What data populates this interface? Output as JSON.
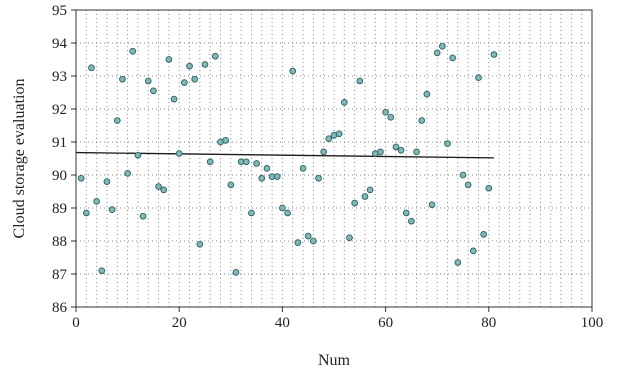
{
  "chart_data": {
    "type": "scatter",
    "title": "",
    "xlabel": "Num",
    "ylabel": "Cloud storage evaluation",
    "xlim": [
      0,
      100
    ],
    "ylim": [
      86,
      95
    ],
    "xticks": [
      0,
      20,
      40,
      60,
      80,
      100
    ],
    "yticks": [
      86,
      87,
      88,
      89,
      90,
      91,
      92,
      93,
      94,
      95
    ],
    "grid": "dotted",
    "colors": {
      "point_fill": "#7fb8b6",
      "point_stroke": "#2f5f63",
      "line": "#1a1a1a",
      "grid": "#888888"
    },
    "series": [
      {
        "x": [
          1,
          2,
          3,
          4,
          5,
          6,
          7,
          8,
          9,
          10,
          11,
          12,
          13,
          14,
          15,
          16,
          17,
          18,
          19,
          20,
          21,
          22,
          23,
          24,
          25,
          26,
          27,
          28,
          29,
          30,
          31,
          32,
          33,
          34,
          35,
          36,
          37,
          38,
          39,
          40,
          41,
          42,
          43,
          44,
          45,
          46,
          47,
          48,
          49,
          50,
          51,
          52,
          53,
          54,
          55,
          56,
          57,
          58,
          59,
          60,
          61,
          62,
          63,
          64,
          65,
          66,
          67,
          68,
          69,
          70,
          71,
          72,
          73,
          74,
          75,
          76,
          77,
          78,
          79,
          80,
          81
        ],
        "y": [
          89.9,
          88.85,
          93.25,
          89.2,
          87.1,
          89.8,
          88.95,
          91.65,
          92.9,
          90.05,
          93.75,
          90.6,
          88.75,
          92.85,
          92.55,
          89.65,
          89.55,
          93.5,
          92.3,
          90.65,
          92.8,
          93.3,
          92.9,
          87.9,
          93.35,
          90.4,
          93.6,
          91.0,
          91.05,
          89.7,
          87.05,
          90.4,
          90.4,
          88.85,
          90.35,
          89.9,
          90.2,
          89.95,
          89.95,
          89.0,
          88.85,
          93.15,
          87.95,
          90.2,
          88.15,
          88.0,
          89.9,
          90.7,
          91.1,
          91.2,
          91.25,
          92.2,
          88.1,
          89.15,
          92.85,
          89.35,
          89.55,
          90.65,
          90.7,
          91.9,
          91.75,
          90.85,
          90.75,
          88.85,
          88.6,
          90.7,
          91.65,
          92.45,
          89.1,
          93.7,
          93.9,
          90.95,
          93.55,
          87.35,
          90.0,
          89.7,
          87.7,
          92.95,
          88.2,
          89.6,
          93.65
        ]
      }
    ],
    "trendline": {
      "x": [
        0,
        81
      ],
      "y": [
        90.68,
        90.52
      ]
    }
  }
}
